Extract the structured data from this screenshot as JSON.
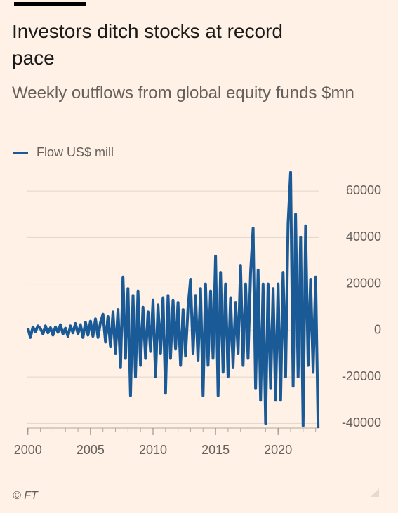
{
  "chart_data": {
    "type": "line",
    "title": "Investors ditch stocks at record pace",
    "subtitle": "Weekly outflows from global equity funds $mn",
    "source": "© FT",
    "x": [
      2000,
      2000.2,
      2000.4,
      2000.6,
      2000.8,
      2001,
      2001.2,
      2001.4,
      2001.6,
      2001.8,
      2002,
      2002.2,
      2002.4,
      2002.6,
      2002.8,
      2003,
      2003.2,
      2003.4,
      2003.6,
      2003.8,
      2004,
      2004.2,
      2004.4,
      2004.6,
      2004.8,
      2005,
      2005.2,
      2005.4,
      2005.6,
      2005.8,
      2006,
      2006.2,
      2006.4,
      2006.6,
      2006.8,
      2007,
      2007.2,
      2007.4,
      2007.6,
      2007.8,
      2008,
      2008.2,
      2008.4,
      2008.6,
      2008.8,
      2009,
      2009.2,
      2009.4,
      2009.6,
      2009.8,
      2010,
      2010.2,
      2010.4,
      2010.6,
      2010.8,
      2011,
      2011.2,
      2011.4,
      2011.6,
      2011.8,
      2012,
      2012.2,
      2012.4,
      2012.6,
      2012.8,
      2013,
      2013.2,
      2013.4,
      2013.6,
      2013.8,
      2014,
      2014.2,
      2014.4,
      2014.6,
      2014.8,
      2015,
      2015.2,
      2015.4,
      2015.6,
      2015.8,
      2016,
      2016.2,
      2016.4,
      2016.6,
      2016.8,
      2017,
      2017.2,
      2017.4,
      2017.6,
      2017.8,
      2018,
      2018.2,
      2018.4,
      2018.6,
      2018.8,
      2019,
      2019.2,
      2019.4,
      2019.6,
      2019.8,
      2020,
      2020.2,
      2020.4,
      2020.6,
      2020.8,
      2021,
      2021.2,
      2021.4,
      2021.6,
      2021.8,
      2022,
      2022.2,
      2022.4,
      2022.6,
      2022.8,
      2023,
      2023.2
    ],
    "series": [
      {
        "name": "Flow US$ mill",
        "color": "#1a5a96",
        "values": [
          1000,
          -3000,
          1500,
          -500,
          2000,
          800,
          -1500,
          2000,
          -1000,
          1200,
          -2000,
          1500,
          -800,
          2500,
          -1500,
          1000,
          -2500,
          2000,
          -1000,
          3000,
          -1500,
          2500,
          -3000,
          3500,
          -2000,
          4000,
          -2500,
          5000,
          -3000,
          3500,
          7000,
          -5000,
          6000,
          -7000,
          8000,
          -10000,
          9000,
          -16000,
          23000,
          -12000,
          18000,
          -28000,
          15000,
          -20000,
          17000,
          -15000,
          10000,
          -12000,
          8000,
          -9000,
          13000,
          -20000,
          11000,
          -10000,
          14000,
          -27000,
          15000,
          -12000,
          13000,
          -8000,
          12000,
          -15000,
          9000,
          -11000,
          10000,
          22000,
          -10000,
          15000,
          -13000,
          18000,
          -28000,
          20000,
          -15000,
          17000,
          -12000,
          32000,
          -28000,
          25000,
          -18000,
          20000,
          -20000,
          14000,
          -16000,
          12000,
          -10000,
          28000,
          -15000,
          20000,
          -12000,
          25000,
          44000,
          -25000,
          26000,
          -30000,
          20000,
          -40000,
          20000,
          -25000,
          18000,
          -30000,
          20000,
          -30000,
          25000,
          -20000,
          46000,
          68000,
          -24000,
          50000,
          -20000,
          40000,
          -41000,
          45000,
          -15000,
          22000,
          -18000,
          23000,
          -42000
        ]
      }
    ],
    "xlim": [
      1999.9,
      2023.3
    ],
    "xticks": [
      2000,
      2005,
      2010,
      2015,
      2020
    ],
    "ylim": [
      -42000,
      70000
    ],
    "yticks": [
      -40000,
      -20000,
      0,
      20000,
      40000,
      60000
    ],
    "grid": true
  }
}
